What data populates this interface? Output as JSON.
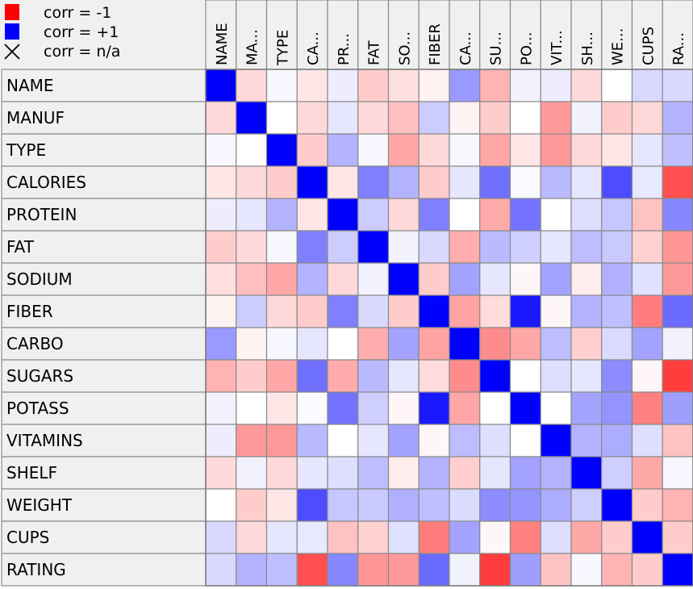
{
  "chart_data": {
    "type": "heatmap",
    "legend": [
      {
        "label": "corr = -1",
        "color": "#ff0000"
      },
      {
        "label": "corr = +1",
        "color": "#0000ff"
      },
      {
        "label": "corr = n/a",
        "symbol": "cross"
      }
    ],
    "columns": [
      "NAME",
      "MA...",
      "TYPE",
      "CA...",
      "PR...",
      "FAT",
      "SO...",
      "FIBER",
      "CA...",
      "SU...",
      "PO...",
      "VIT...",
      "SH...",
      "WE...",
      "CUPS",
      "RA..."
    ],
    "rows": [
      "NAME",
      "MANUF",
      "TYPE",
      "CALORIES",
      "PROTEIN",
      "FAT",
      "SODIUM",
      "FIBER",
      "CARBO",
      "SUGARS",
      "POTASS",
      "VITAMINS",
      "SHELF",
      "WEIGHT",
      "CUPS",
      "RATING"
    ],
    "value_range": [
      -1,
      1
    ],
    "values": [
      [
        1.0,
        -0.15,
        0.03,
        -0.1,
        0.07,
        -0.2,
        -0.12,
        -0.05,
        0.4,
        -0.3,
        0.05,
        0.07,
        -0.15,
        0.0,
        0.15,
        0.15
      ],
      [
        -0.15,
        1.0,
        0.0,
        -0.15,
        0.1,
        -0.15,
        -0.25,
        0.2,
        -0.05,
        -0.2,
        0.0,
        -0.4,
        0.05,
        -0.2,
        -0.15,
        0.3
      ],
      [
        0.03,
        0.0,
        1.0,
        -0.2,
        0.3,
        0.03,
        -0.35,
        -0.15,
        0.03,
        -0.35,
        -0.1,
        -0.4,
        -0.15,
        -0.1,
        0.1,
        0.25
      ],
      [
        -0.1,
        -0.15,
        -0.2,
        1.0,
        -0.1,
        0.5,
        0.3,
        -0.2,
        0.1,
        0.56,
        0.02,
        0.27,
        0.1,
        0.7,
        0.09,
        -0.69
      ],
      [
        0.07,
        0.1,
        0.3,
        -0.1,
        1.0,
        0.2,
        -0.15,
        0.5,
        0.0,
        -0.33,
        0.55,
        0.0,
        0.13,
        0.22,
        -0.24,
        0.47
      ],
      [
        -0.2,
        -0.15,
        0.03,
        0.5,
        0.2,
        1.0,
        0.05,
        0.15,
        -0.32,
        0.27,
        0.19,
        0.1,
        0.26,
        0.21,
        -0.18,
        -0.41
      ],
      [
        -0.12,
        -0.25,
        -0.35,
        0.3,
        -0.15,
        0.05,
        1.0,
        -0.2,
        0.36,
        0.1,
        -0.03,
        0.36,
        -0.07,
        0.31,
        0.12,
        -0.4
      ],
      [
        -0.05,
        0.2,
        -0.15,
        -0.2,
        0.5,
        0.15,
        -0.2,
        1.0,
        -0.36,
        -0.14,
        0.9,
        -0.03,
        0.3,
        0.25,
        -0.51,
        0.58
      ],
      [
        0.4,
        -0.05,
        0.03,
        0.1,
        0.0,
        -0.32,
        0.36,
        -0.36,
        1.0,
        -0.45,
        -0.35,
        0.26,
        -0.19,
        0.14,
        0.36,
        0.05
      ],
      [
        -0.3,
        -0.2,
        -0.35,
        0.56,
        -0.33,
        0.27,
        0.1,
        -0.14,
        -0.45,
        1.0,
        0.0,
        0.13,
        0.1,
        0.45,
        -0.03,
        -0.76
      ],
      [
        0.05,
        0.0,
        -0.1,
        0.02,
        0.55,
        0.19,
        -0.03,
        0.9,
        -0.35,
        0.0,
        1.0,
        0.0,
        0.36,
        0.42,
        -0.5,
        0.38
      ],
      [
        0.07,
        -0.4,
        -0.4,
        0.27,
        0.0,
        0.1,
        0.36,
        -0.03,
        0.26,
        0.13,
        0.0,
        1.0,
        0.3,
        0.32,
        0.13,
        -0.24
      ],
      [
        -0.15,
        0.05,
        -0.15,
        0.1,
        0.13,
        0.26,
        -0.07,
        0.3,
        -0.19,
        0.1,
        0.36,
        0.3,
        1.0,
        0.19,
        -0.34,
        0.03
      ],
      [
        0.0,
        -0.2,
        -0.1,
        0.7,
        0.22,
        0.21,
        0.31,
        0.25,
        0.14,
        0.45,
        0.42,
        0.32,
        0.19,
        1.0,
        -0.2,
        -0.3
      ],
      [
        0.15,
        -0.15,
        0.1,
        0.09,
        -0.24,
        -0.18,
        0.12,
        -0.51,
        0.36,
        -0.03,
        -0.5,
        0.13,
        -0.34,
        -0.2,
        1.0,
        -0.2
      ],
      [
        0.15,
        0.3,
        0.25,
        -0.69,
        0.47,
        -0.41,
        -0.4,
        0.58,
        0.05,
        -0.76,
        0.38,
        -0.24,
        0.03,
        -0.3,
        -0.2,
        1.0
      ]
    ]
  }
}
